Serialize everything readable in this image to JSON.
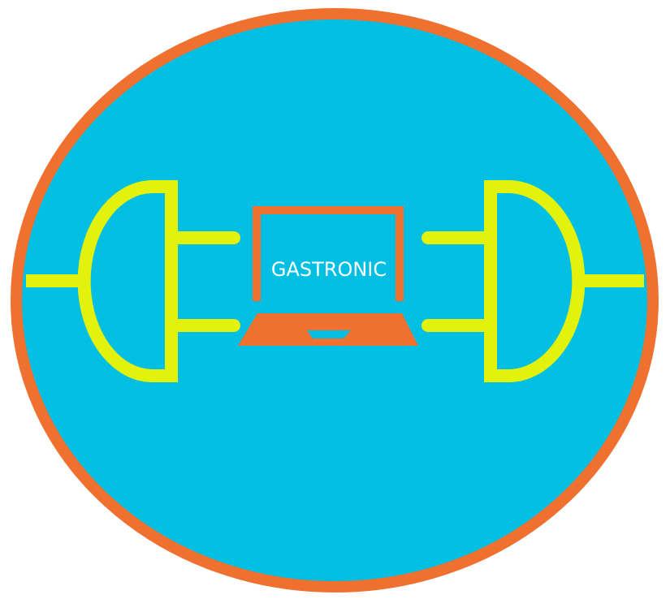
{
  "logo": {
    "brand_name": "GASTRONIC",
    "colors": {
      "background": "#ffffff",
      "circle_fill": "#00bfe3",
      "circle_border": "#f07030",
      "plug_color": "#e2f20c",
      "laptop_color": "#f07030",
      "text_color": "#ffffff"
    },
    "icons": [
      "power-plug-left-icon",
      "power-plug-right-icon",
      "laptop-icon"
    ]
  }
}
